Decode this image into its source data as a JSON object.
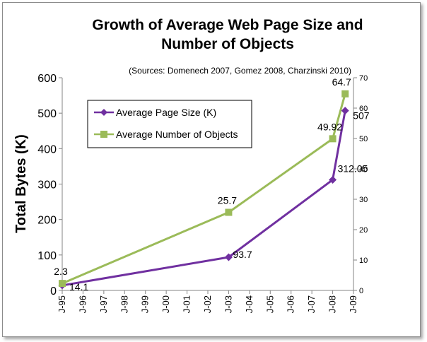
{
  "chart_data": {
    "type": "line",
    "title": "Growth of Average Web Page Size and Number of Objects",
    "title_lines": [
      "Growth of Average  Web Page Size and",
      "Number of Objects"
    ],
    "subtitle": "(Sources:  Domenech 2007,  Gomez 2008,  Charzinski  2010)",
    "ylabel": "Total Bytes (K)",
    "y2label": "",
    "categories": [
      "J-95",
      "J-96",
      "J-97",
      "J-98",
      "J-99",
      "J-00",
      "J-01",
      "J-02",
      "J-03",
      "J-04",
      "J-05",
      "J-06",
      "J-07",
      "J-08",
      "J-09"
    ],
    "ylim": [
      0,
      600
    ],
    "yticks": [
      0,
      100,
      200,
      300,
      400,
      500,
      600
    ],
    "y2lim": [
      0,
      70
    ],
    "y2ticks": [
      0,
      10,
      20,
      30,
      40,
      50,
      60,
      70
    ],
    "legend_position": "upper-left",
    "grid": false,
    "series": [
      {
        "name": "Average Page Size (K)",
        "axis": "left",
        "color": "#7030a0",
        "marker": "diamond",
        "points": [
          {
            "x": 1995.0,
            "y": 14.1,
            "label": "14.1"
          },
          {
            "x": 2003.0,
            "y": 93.7,
            "label": "93.7"
          },
          {
            "x": 2008.0,
            "y": 312.05,
            "label": "312.05"
          },
          {
            "x": 2008.6,
            "y": 507,
            "label": "507"
          }
        ]
      },
      {
        "name": "Average Number of Objects",
        "axis": "right",
        "color": "#9bbb59",
        "marker": "square",
        "points": [
          {
            "x": 1995.0,
            "y": 2.3,
            "label": "2.3"
          },
          {
            "x": 2003.0,
            "y": 25.7,
            "label": "25.7"
          },
          {
            "x": 2008.0,
            "y": 49.92,
            "label": "49.92"
          },
          {
            "x": 2008.6,
            "y": 64.7,
            "label": "64.7"
          }
        ]
      }
    ]
  }
}
